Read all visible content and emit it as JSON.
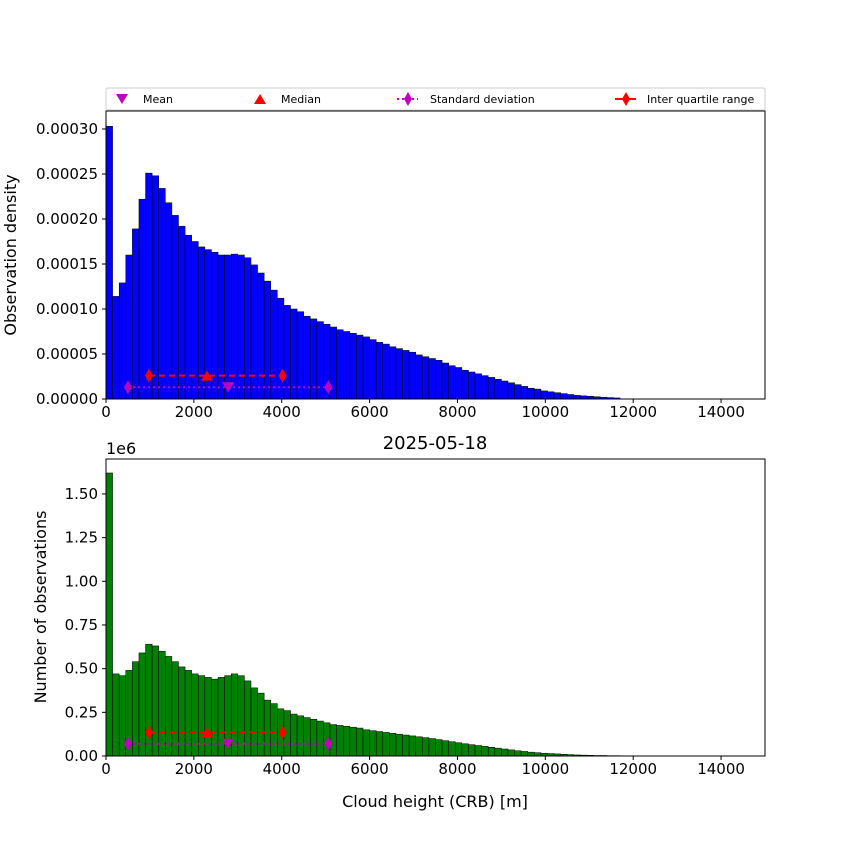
{
  "title": "2025-05-18",
  "legend": {
    "placement": "top, above upper panel",
    "entries": [
      {
        "label": "Mean",
        "marker": "triangle-down",
        "color": "#bf00bf"
      },
      {
        "label": "Median",
        "marker": "triangle-up",
        "color": "#ff0000"
      },
      {
        "label": "Standard deviation",
        "marker": "thin-diamond",
        "color": "#bf00bf",
        "line": "dotted"
      },
      {
        "label": "Inter quartile range",
        "marker": "thin-diamond",
        "color": "#ff0000",
        "line": "solid"
      }
    ]
  },
  "stats": {
    "mean": 2780,
    "median": 2300,
    "std_range": [
      500,
      5060
    ],
    "iqr_range": [
      980,
      4020
    ]
  },
  "chart_data": [
    {
      "type": "bar",
      "panel": "upper",
      "ylabel": "Observation density",
      "xlabel": "",
      "xlim": [
        0,
        15000
      ],
      "ylim": [
        0,
        0.00032
      ],
      "xticks": [
        "0",
        "2000",
        "4000",
        "6000",
        "8000",
        "10000",
        "12000",
        "14000"
      ],
      "yticks": [
        "0.00000",
        "0.00005",
        "0.00010",
        "0.00015",
        "0.00020",
        "0.00025",
        "0.00030"
      ],
      "color": "#0000ff",
      "bin_width": 150,
      "values": [
        0.000303,
        0.000114,
        0.000129,
        0.00016,
        0.000189,
        0.000222,
        0.000251,
        0.000248,
        0.000234,
        0.000218,
        0.000204,
        0.000192,
        0.000182,
        0.000175,
        0.000169,
        0.000166,
        0.000163,
        0.00016,
        0.00016,
        0.000161,
        0.00016,
        0.000157,
        0.000149,
        0.00014,
        0.000131,
        0.000121,
        0.000112,
        0.000104,
        0.0001,
        9.7e-05,
        9.2e-05,
        8.9e-05,
        8.6e-05,
        8.3e-05,
        8e-05,
        7.7e-05,
        7.5e-05,
        7.3e-05,
        7.1e-05,
        6.9e-05,
        6.6e-05,
        6.3e-05,
        6.1e-05,
        5.8e-05,
        5.6e-05,
        5.4e-05,
        5.2e-05,
        4.9e-05,
        4.7e-05,
        4.5e-05,
        4.3e-05,
        4e-05,
        3.7e-05,
        3.5e-05,
        3.2e-05,
        3e-05,
        2.8e-05,
        2.6e-05,
        2.4e-05,
        2.2e-05,
        2e-05,
        1.8e-05,
        1.6e-05,
        1.4e-05,
        1.2e-05,
        1.1e-05,
        9e-06,
        8e-06,
        7e-06,
        6e-06,
        5e-06,
        4e-06,
        3.5e-06,
        3e-06,
        2.5e-06,
        2e-06,
        1.6e-06,
        1.2e-06,
        0,
        0,
        0,
        0,
        0,
        0,
        0,
        0,
        0,
        0,
        0,
        0,
        0,
        0,
        0,
        0,
        0,
        0,
        0,
        0,
        0,
        0
      ],
      "markers": {
        "mean_y": 1.3e-05,
        "median_y": 2.6e-05,
        "std_y": 1.3e-05,
        "iqr_y": 2.6e-05
      }
    },
    {
      "type": "bar",
      "panel": "lower",
      "title": "2025-05-18",
      "ylabel": "Number of observations",
      "xlabel": "Cloud height (CRB) [m]",
      "offset_label": "1e6",
      "xlim": [
        0,
        15000
      ],
      "ylim": [
        0,
        1.7
      ],
      "xticks": [
        "0",
        "2000",
        "4000",
        "6000",
        "8000",
        "10000",
        "12000",
        "14000"
      ],
      "yticks": [
        "0.00",
        "0.25",
        "0.50",
        "0.75",
        "1.00",
        "1.25",
        "1.50"
      ],
      "color": "#008000",
      "bin_width": 150,
      "values": [
        1.62,
        0.47,
        0.46,
        0.49,
        0.54,
        0.59,
        0.64,
        0.63,
        0.6,
        0.57,
        0.54,
        0.51,
        0.49,
        0.47,
        0.46,
        0.45,
        0.44,
        0.45,
        0.46,
        0.47,
        0.46,
        0.43,
        0.39,
        0.36,
        0.32,
        0.3,
        0.27,
        0.26,
        0.24,
        0.23,
        0.22,
        0.21,
        0.2,
        0.19,
        0.18,
        0.175,
        0.17,
        0.165,
        0.16,
        0.15,
        0.145,
        0.14,
        0.135,
        0.13,
        0.125,
        0.12,
        0.115,
        0.11,
        0.105,
        0.1,
        0.094,
        0.088,
        0.082,
        0.076,
        0.07,
        0.065,
        0.06,
        0.055,
        0.05,
        0.045,
        0.04,
        0.035,
        0.03,
        0.026,
        0.022,
        0.019,
        0.016,
        0.014,
        0.012,
        0.01,
        0.008,
        0.006,
        0.005,
        0.004,
        0.003,
        0.003,
        0.002,
        0.002,
        0.001,
        0.001,
        0.001,
        0.001,
        0.001,
        0.001,
        0.001,
        0.001,
        0.0008,
        0.0008,
        0.0006,
        0.0006,
        0.0005,
        0.0005,
        0.0004,
        0.0004,
        0.0003,
        0.0003,
        0.0002,
        0.0002,
        0.0001,
        0.0001
      ],
      "markers": {
        "mean_y": 0.07,
        "median_y": 0.135,
        "std_y": 0.07,
        "iqr_y": 0.135
      }
    }
  ]
}
